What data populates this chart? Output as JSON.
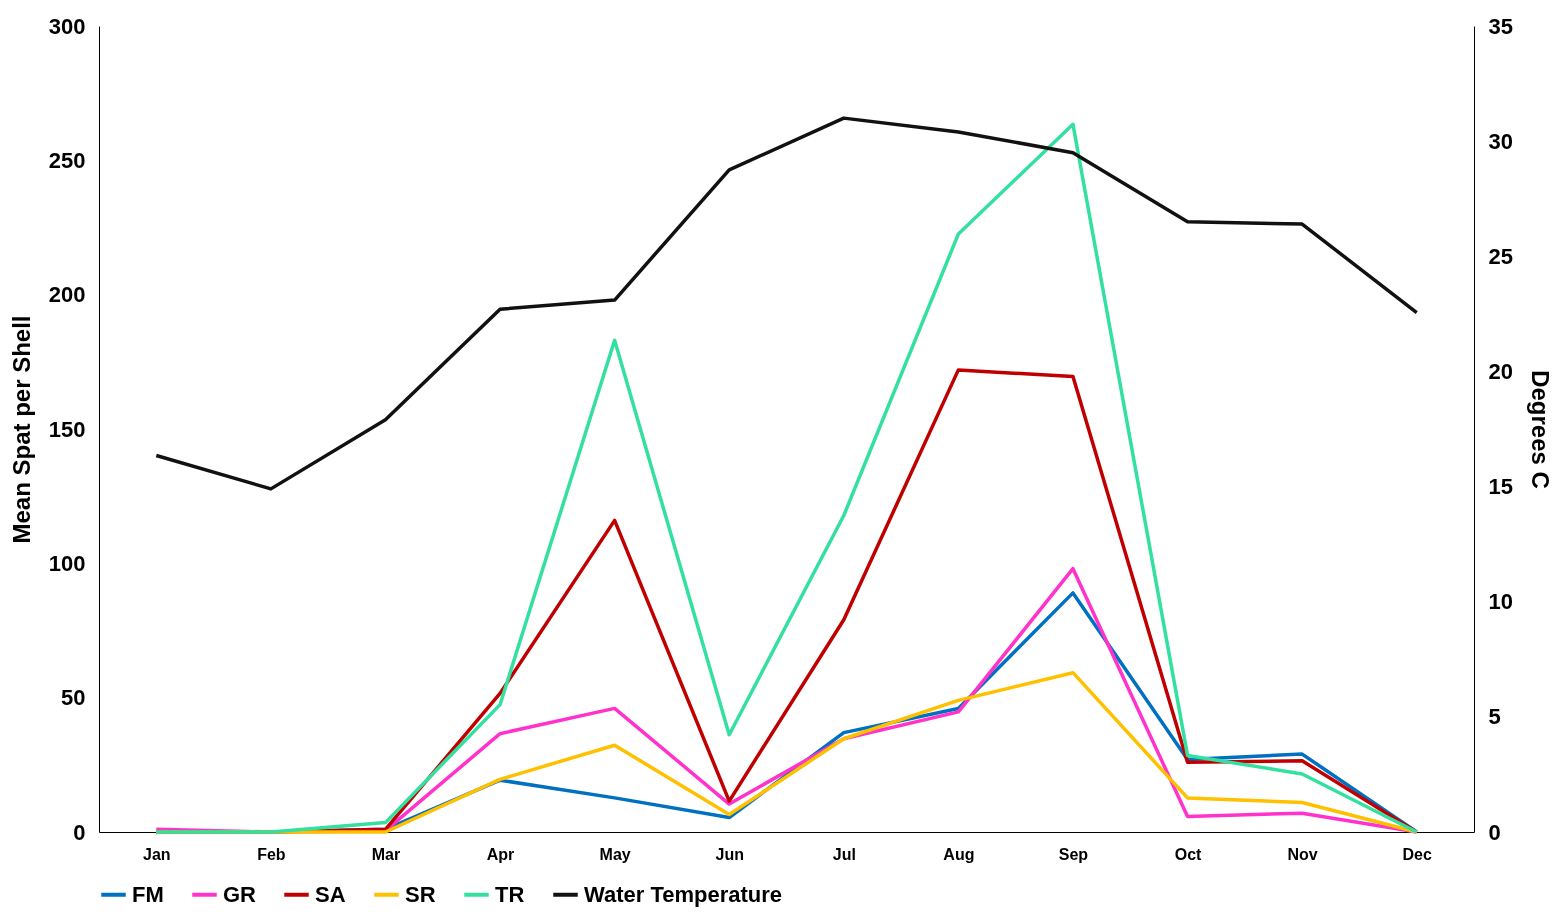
{
  "chart_data": {
    "type": "line",
    "ylabel": "Mean Spat per Shell",
    "y2label": "Degrees C",
    "categories": [
      "Jan",
      "Feb",
      "Mar",
      "Apr",
      "May",
      "Jun",
      "Jul",
      "Aug",
      "Sep",
      "Oct",
      "Nov",
      "Dec"
    ],
    "series": [
      {
        "name": "FM",
        "color": "#0070c0",
        "values": [
          0,
          0,
          1,
          19.3,
          12.7,
          5.4,
          37,
          46,
          89,
          27,
          29,
          0
        ]
      },
      {
        "name": "GR",
        "color": "#ff33cc",
        "values": [
          1,
          0,
          0.5,
          36.6,
          46,
          10.4,
          34.7,
          44.7,
          98,
          5.8,
          7,
          0
        ]
      },
      {
        "name": "SA",
        "color": "#c00000",
        "values": [
          0,
          0,
          1,
          51.6,
          116,
          11.5,
          79,
          172,
          169.5,
          26,
          26.5,
          0
        ]
      },
      {
        "name": "SR",
        "color": "#ffc000",
        "values": [
          0,
          0,
          0,
          19.6,
          32.3,
          6.5,
          34.7,
          49,
          59.3,
          12.7,
          11,
          0
        ]
      },
      {
        "name": "TR",
        "color": "#33e0a0",
        "values": [
          0,
          0,
          3.5,
          47.4,
          183,
          36.2,
          117.8,
          222.6,
          263.4,
          28.5,
          21.6,
          0
        ]
      },
      {
        "name": "Water Temperature",
        "color": "#111111",
        "axis": "y2",
        "values": [
          16.35,
          14.9,
          17.9,
          22.7,
          23.1,
          28.75,
          31.0,
          30.4,
          29.5,
          26.5,
          26.4,
          22.55
        ]
      }
    ],
    "ylim": [
      0,
      300
    ],
    "yticks": [
      0,
      50,
      100,
      150,
      200,
      250,
      300
    ],
    "y2lim": [
      0,
      35
    ],
    "y2ticks": [
      0,
      5,
      10,
      15,
      20,
      25,
      30,
      35
    ],
    "grid": false,
    "legend": "bottom",
    "marker": "none",
    "line_style": "solid"
  }
}
